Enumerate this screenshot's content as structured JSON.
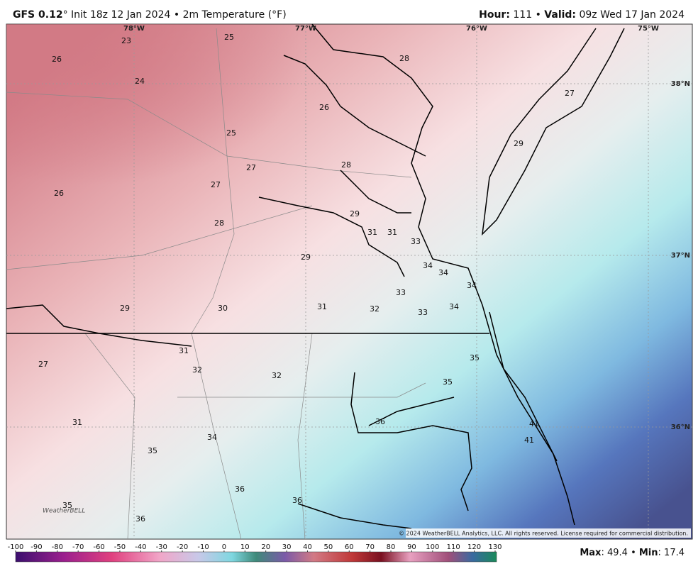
{
  "header": {
    "model": "GFS 0.12",
    "run": "° Init 18z 12 Jan 2024",
    "separator": "•",
    "product": "2m Temperature (°F)",
    "hour_label": "Hour:",
    "hour": "111",
    "valid_label": "Valid:",
    "valid": "09z Wed 17 Jan 2024"
  },
  "map": {
    "lon_labels": [
      "78°W",
      "77°W",
      "76°W",
      "75°W"
    ],
    "lat_labels": [
      "38°N",
      "37°N",
      "36°N"
    ],
    "stations": [
      23,
      25,
      26,
      24,
      28,
      26,
      27,
      25,
      29,
      27,
      28,
      26,
      27,
      29,
      28,
      31,
      31,
      33,
      29,
      34,
      34,
      34,
      33,
      29,
      30,
      31,
      32,
      33,
      34,
      31,
      35,
      27,
      32,
      32,
      35,
      36,
      31,
      41,
      34,
      41,
      35,
      36,
      36,
      35,
      36
    ],
    "logo": "WeatherBELL",
    "copyright": "© 2024 WeatherBELL Analytics, LLC. All rights reserved. License required for commercial distribution."
  },
  "colorbar": {
    "ticks": [
      -100,
      -90,
      -80,
      -70,
      -60,
      -50,
      -40,
      -30,
      -20,
      -10,
      0,
      10,
      20,
      30,
      40,
      50,
      60,
      70,
      80,
      90,
      100,
      110,
      120,
      130
    ]
  },
  "footer": {
    "max_label": "Max",
    "max": 49.4,
    "separator": "•",
    "min_label": "Min",
    "min": 17.4
  }
}
